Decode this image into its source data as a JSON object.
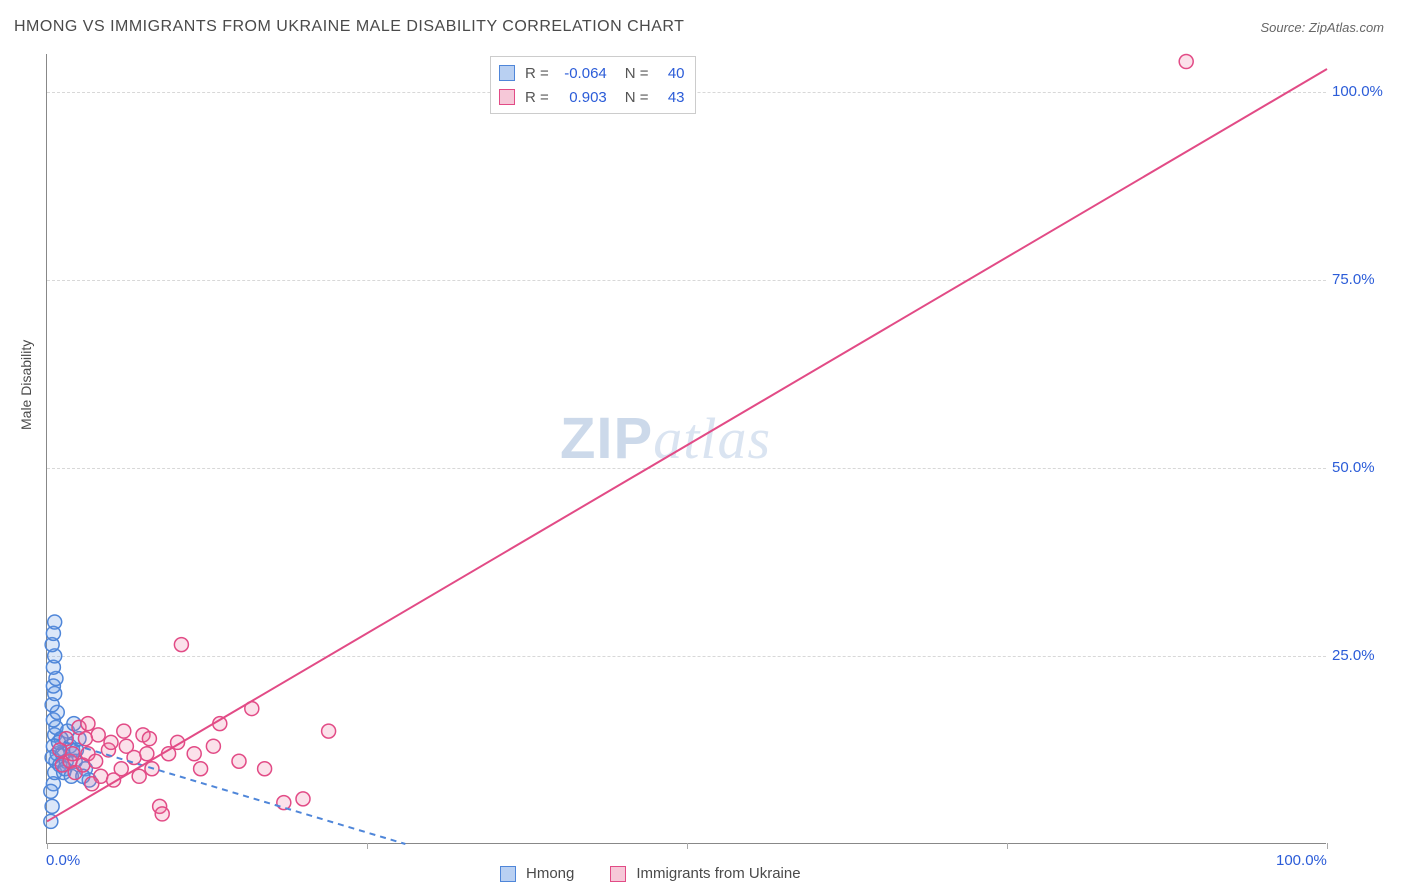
{
  "title": "HMONG VS IMMIGRANTS FROM UKRAINE MALE DISABILITY CORRELATION CHART",
  "source": "Source: ZipAtlas.com",
  "y_axis_label": "Male Disability",
  "watermark_zip": "ZIP",
  "watermark_atlas": "atlas",
  "chart": {
    "type": "scatter",
    "xlim": [
      0,
      100
    ],
    "ylim": [
      0,
      105
    ],
    "x_ticks": [
      0,
      50,
      100
    ],
    "x_tick_labels": [
      "0.0%",
      "",
      "100.0%"
    ],
    "y_ticks": [
      25,
      50,
      75,
      100
    ],
    "y_tick_labels": [
      "25.0%",
      "50.0%",
      "75.0%",
      "100.0%"
    ],
    "y_tick_right_offset": 1286,
    "grid_color": "#d8d8d8",
    "background_color": "#ffffff",
    "marker_radius": 7,
    "marker_stroke_width": 1.5,
    "line_width": 2
  },
  "series": [
    {
      "name": "Hmong",
      "marker_fill": "rgba(110,160,230,0.25)",
      "marker_stroke": "#4f86d9",
      "swatch_fill": "#b9d0f2",
      "swatch_border": "#4f86d9",
      "line_color": "#4f86d9",
      "line_dash": "6,5",
      "R": "-0.064",
      "N": "40",
      "points": [
        [
          0.4,
          5
        ],
        [
          0.5,
          8
        ],
        [
          0.6,
          9.5
        ],
        [
          0.7,
          11
        ],
        [
          0.8,
          12
        ],
        [
          0.5,
          13
        ],
        [
          0.6,
          14.5
        ],
        [
          0.7,
          15.5
        ],
        [
          0.5,
          16.5
        ],
        [
          0.8,
          17.5
        ],
        [
          0.4,
          18.5
        ],
        [
          0.6,
          20
        ],
        [
          0.5,
          21
        ],
        [
          0.7,
          22
        ],
        [
          0.5,
          23.5
        ],
        [
          0.6,
          25
        ],
        [
          0.4,
          26.5
        ],
        [
          0.5,
          28
        ],
        [
          0.6,
          29.5
        ],
        [
          0.4,
          11.5
        ],
        [
          1.0,
          10.5
        ],
        [
          1.2,
          12
        ],
        [
          1.5,
          11
        ],
        [
          1.8,
          13
        ],
        [
          2.0,
          12.5
        ],
        [
          2.2,
          11
        ],
        [
          1.3,
          9.5
        ],
        [
          1.6,
          15
        ],
        [
          2.5,
          14
        ],
        [
          3.0,
          10
        ],
        [
          2.1,
          16
        ],
        [
          1.1,
          14
        ],
        [
          1.4,
          10
        ],
        [
          1.9,
          9
        ],
        [
          2.3,
          12.5
        ],
        [
          0.9,
          13.5
        ],
        [
          3.3,
          8.5
        ],
        [
          2.8,
          9
        ],
        [
          0.3,
          7
        ],
        [
          0.3,
          3
        ]
      ],
      "fit_line": {
        "x1": 0.5,
        "y1": 14,
        "x2": 28,
        "y2": 0
      }
    },
    {
      "name": "Immigrants from Ukraine",
      "marker_fill": "rgba(235,120,160,0.22)",
      "marker_stroke": "#e24b86",
      "swatch_fill": "#f6c8d8",
      "swatch_border": "#e24b86",
      "line_color": "#e24b86",
      "line_dash": "",
      "R": "0.903",
      "N": "43",
      "points": [
        [
          1.2,
          10.5
        ],
        [
          1.8,
          11
        ],
        [
          2.2,
          9.5
        ],
        [
          2.8,
          10.5
        ],
        [
          3.2,
          12
        ],
        [
          3.8,
          11
        ],
        [
          4.2,
          9
        ],
        [
          4.8,
          12.5
        ],
        [
          5.2,
          8.5
        ],
        [
          5.8,
          10
        ],
        [
          6.2,
          13
        ],
        [
          6.8,
          11.5
        ],
        [
          7.2,
          9
        ],
        [
          7.8,
          12
        ],
        [
          8.2,
          10
        ],
        [
          3.5,
          8
        ],
        [
          8.8,
          5
        ],
        [
          9.0,
          4
        ],
        [
          9.5,
          12
        ],
        [
          10.2,
          13.5
        ],
        [
          11.5,
          12
        ],
        [
          12.0,
          10
        ],
        [
          13.0,
          13
        ],
        [
          13.5,
          16
        ],
        [
          15.0,
          11
        ],
        [
          16.0,
          18
        ],
        [
          17.0,
          10
        ],
        [
          18.5,
          5.5
        ],
        [
          20.0,
          6
        ],
        [
          22.0,
          15
        ],
        [
          10.5,
          26.5
        ],
        [
          7.5,
          14.5
        ],
        [
          6.0,
          15
        ],
        [
          8.0,
          14
        ],
        [
          5.0,
          13.5
        ],
        [
          4.0,
          14.5
        ],
        [
          2.0,
          12
        ],
        [
          3.0,
          14
        ],
        [
          2.5,
          15.5
        ],
        [
          1.5,
          14
        ],
        [
          1.0,
          12.5
        ],
        [
          3.2,
          16
        ],
        [
          89,
          104
        ]
      ],
      "fit_line": {
        "x1": 0,
        "y1": 3,
        "x2": 100,
        "y2": 103
      }
    }
  ],
  "legend_top": {
    "r_label": "R =",
    "n_label": "N ="
  },
  "legend_bottom": [
    {
      "swatch_fill": "#b9d0f2",
      "swatch_border": "#4f86d9",
      "label": "Hmong"
    },
    {
      "swatch_fill": "#f6c8d8",
      "swatch_border": "#e24b86",
      "label": "Immigrants from Ukraine"
    }
  ]
}
